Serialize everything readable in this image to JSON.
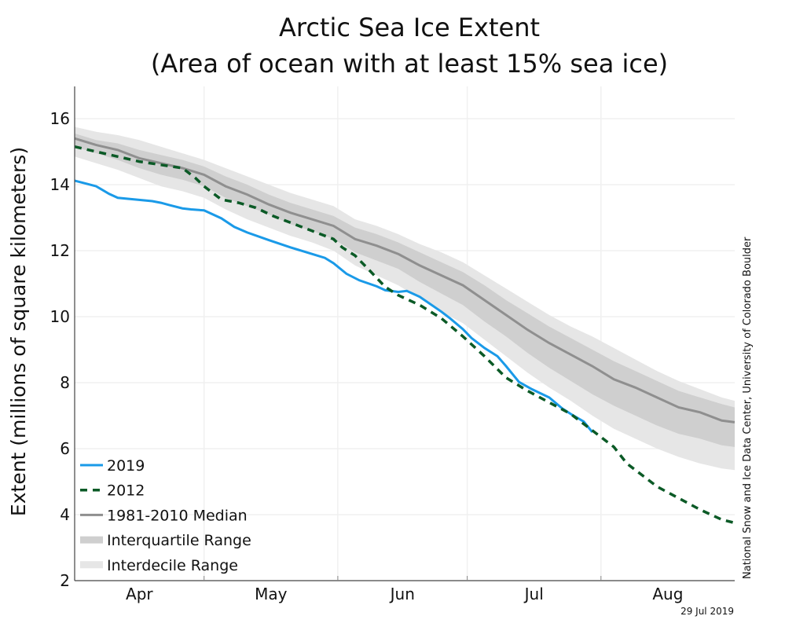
{
  "chart_data": {
    "type": "line",
    "title": "Arctic Sea Ice Extent",
    "subtitle": "(Area of ocean with at least 15% sea ice)",
    "xlabel": "",
    "ylabel": "Extent (millions of square kilometers)",
    "ylim": [
      2,
      17
    ],
    "xlim_days": [
      0,
      153
    ],
    "x_unit": "days since Apr 1",
    "yticks": [
      2,
      4,
      6,
      8,
      10,
      12,
      14,
      16
    ],
    "month_ticks": [
      {
        "label": "Apr",
        "start": 0,
        "end": 30
      },
      {
        "label": "May",
        "start": 30,
        "end": 61
      },
      {
        "label": "Jun",
        "start": 61,
        "end": 91
      },
      {
        "label": "Jul",
        "start": 91,
        "end": 122
      },
      {
        "label": "Aug",
        "start": 122,
        "end": 153
      }
    ],
    "grid": true,
    "legend_position": "bottom-left",
    "legend": [
      {
        "label": "2019",
        "style": "line",
        "color": "#1a9ae8"
      },
      {
        "label": "2012",
        "style": "dashed",
        "color": "#0b5a26"
      },
      {
        "label": "1981-2010 Median",
        "style": "line",
        "color": "#8f8f8f"
      },
      {
        "label": "Interquartile Range",
        "style": "band",
        "color": "#cfcfcf"
      },
      {
        "label": "Interdecile Range",
        "style": "band",
        "color": "#e6e6e6"
      }
    ],
    "bands": {
      "x": [
        0,
        5,
        10,
        15,
        20,
        25,
        30,
        35,
        40,
        45,
        50,
        55,
        60,
        65,
        70,
        75,
        80,
        85,
        90,
        95,
        100,
        105,
        110,
        115,
        120,
        125,
        130,
        135,
        140,
        145,
        150,
        153
      ],
      "median": [
        15.4,
        15.2,
        15.05,
        14.8,
        14.65,
        14.5,
        14.3,
        13.95,
        13.7,
        13.4,
        13.15,
        12.95,
        12.75,
        12.35,
        12.15,
        11.9,
        11.55,
        11.25,
        10.95,
        10.5,
        10.05,
        9.6,
        9.2,
        8.85,
        8.5,
        8.1,
        7.85,
        7.55,
        7.25,
        7.1,
        6.85,
        6.8
      ],
      "iq_low": [
        15.15,
        14.95,
        14.75,
        14.5,
        14.3,
        14.15,
        13.95,
        13.6,
        13.35,
        13.1,
        12.8,
        12.6,
        12.35,
        11.95,
        11.7,
        11.45,
        11.05,
        10.7,
        10.35,
        9.85,
        9.4,
        8.9,
        8.45,
        8.05,
        7.65,
        7.3,
        7.0,
        6.7,
        6.45,
        6.3,
        6.1,
        6.05
      ],
      "iq_high": [
        15.55,
        15.35,
        15.25,
        15.05,
        14.9,
        14.75,
        14.55,
        14.25,
        14.0,
        13.7,
        13.45,
        13.25,
        13.05,
        12.7,
        12.5,
        12.25,
        11.95,
        11.65,
        11.35,
        10.95,
        10.5,
        10.1,
        9.7,
        9.35,
        9.0,
        8.65,
        8.35,
        8.05,
        7.75,
        7.55,
        7.35,
        7.25
      ],
      "id_low": [
        14.85,
        14.65,
        14.45,
        14.2,
        13.95,
        13.8,
        13.6,
        13.25,
        12.95,
        12.7,
        12.45,
        12.25,
        12.0,
        11.55,
        11.25,
        10.95,
        10.55,
        10.15,
        9.8,
        9.3,
        8.8,
        8.3,
        7.85,
        7.45,
        7.0,
        6.6,
        6.3,
        6.0,
        5.75,
        5.55,
        5.4,
        5.35
      ],
      "id_high": [
        15.75,
        15.6,
        15.5,
        15.35,
        15.15,
        14.95,
        14.75,
        14.5,
        14.25,
        14.0,
        13.75,
        13.55,
        13.35,
        12.95,
        12.75,
        12.5,
        12.2,
        11.95,
        11.65,
        11.25,
        10.85,
        10.45,
        10.05,
        9.7,
        9.4,
        9.05,
        8.7,
        8.35,
        8.05,
        7.8,
        7.55,
        7.45
      ]
    },
    "series": [
      {
        "name": "2019",
        "x": [
          0,
          3,
          5,
          8,
          10,
          14,
          18,
          20,
          22,
          25,
          27,
          30,
          34,
          37,
          40,
          45,
          50,
          55,
          58,
          60,
          63,
          66,
          70,
          72,
          75,
          77,
          80,
          85,
          87,
          90,
          92,
          95,
          98,
          100,
          103,
          106,
          110,
          113,
          115,
          118,
          120
        ],
        "values": [
          14.12,
          14.02,
          13.95,
          13.72,
          13.6,
          13.55,
          13.5,
          13.45,
          13.38,
          13.28,
          13.25,
          13.22,
          12.98,
          12.72,
          12.55,
          12.32,
          12.1,
          11.9,
          11.78,
          11.62,
          11.3,
          11.1,
          10.92,
          10.8,
          10.75,
          10.78,
          10.6,
          10.15,
          9.95,
          9.62,
          9.35,
          9.05,
          8.8,
          8.5,
          8.02,
          7.8,
          7.55,
          7.22,
          7.05,
          6.82,
          6.5
        ]
      },
      {
        "name": "2012",
        "x": [
          0,
          5,
          10,
          15,
          20,
          25,
          28,
          30,
          34,
          38,
          42,
          46,
          50,
          55,
          60,
          62,
          65,
          68,
          72,
          75,
          80,
          85,
          90,
          95,
          100,
          105,
          110,
          115,
          120,
          125,
          128,
          132,
          135,
          140,
          145,
          150,
          153
        ],
        "values": [
          15.15,
          15.0,
          14.85,
          14.7,
          14.6,
          14.5,
          14.2,
          13.95,
          13.55,
          13.45,
          13.3,
          13.05,
          12.85,
          12.6,
          12.35,
          12.1,
          11.85,
          11.45,
          10.9,
          10.65,
          10.35,
          9.95,
          9.4,
          8.8,
          8.15,
          7.75,
          7.4,
          7.05,
          6.55,
          6.05,
          5.55,
          5.15,
          4.85,
          4.5,
          4.15,
          3.85,
          3.75
        ]
      }
    ]
  },
  "credit": "National Snow and Ice Data Center, University of Colorado Boulder",
  "date_stamp": "29 Jul 2019"
}
